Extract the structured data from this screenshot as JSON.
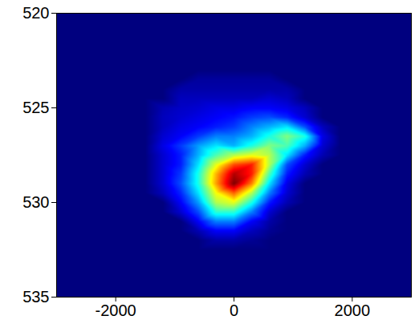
{
  "chart_data": {
    "type": "heatmap",
    "x": [
      -3000,
      -2700,
      -2400,
      -2100,
      -1800,
      -1500,
      -1200,
      -900,
      -600,
      -300,
      0,
      300,
      600,
      900,
      1200,
      1500,
      1800,
      2100,
      2400,
      2700,
      3000
    ],
    "y": [
      520,
      520.5,
      521,
      521.5,
      522,
      522.5,
      523,
      523.5,
      524,
      524.5,
      525,
      525.5,
      526,
      526.5,
      527,
      527.5,
      528,
      528.5,
      529,
      529.5,
      530,
      530.5,
      531,
      531.5,
      532,
      532.5,
      533,
      533.5,
      534,
      534.5,
      535
    ],
    "z": [
      [
        0,
        0,
        0,
        0,
        0,
        0,
        0,
        0,
        0,
        0,
        0,
        0,
        0,
        0,
        0,
        0,
        0,
        0,
        0,
        0,
        0
      ],
      [
        0,
        0,
        0,
        0,
        0,
        0,
        0,
        0,
        0,
        0,
        0,
        0,
        0,
        0,
        0,
        0,
        0,
        0,
        0,
        0,
        0
      ],
      [
        0,
        0,
        0,
        0,
        0,
        0,
        0,
        0,
        0,
        0,
        0,
        0,
        0,
        0,
        0,
        0,
        0,
        0,
        0,
        0,
        0
      ],
      [
        0,
        0,
        0,
        0,
        0,
        0,
        0,
        0,
        0,
        0,
        0,
        0,
        0,
        0,
        0,
        0,
        0,
        0,
        0,
        0,
        0
      ],
      [
        0,
        0,
        0,
        0,
        0,
        0,
        0,
        0,
        0,
        0,
        0,
        0,
        0,
        0,
        0,
        0,
        0,
        0,
        0,
        0,
        0
      ],
      [
        0,
        0,
        0,
        0,
        0,
        0,
        0,
        0,
        0,
        0,
        0,
        0,
        0,
        0,
        0,
        0,
        0,
        0,
        0,
        0,
        0
      ],
      [
        0,
        0,
        0,
        0,
        0,
        0,
        0,
        0,
        0,
        0,
        0,
        0,
        0,
        0,
        0,
        0,
        0,
        0,
        0,
        0,
        0
      ],
      [
        0,
        0,
        0,
        0,
        0,
        0,
        0,
        0,
        0.03,
        0.03,
        0.03,
        0.03,
        0.03,
        0,
        0,
        0,
        0,
        0,
        0,
        0,
        0
      ],
      [
        0,
        0,
        0,
        0,
        0,
        0,
        0,
        0.04,
        0.04,
        0.04,
        0.04,
        0.04,
        0.04,
        0.04,
        0,
        0,
        0,
        0,
        0,
        0,
        0
      ],
      [
        0,
        0,
        0,
        0,
        0,
        0,
        0,
        0.06,
        0.06,
        0.06,
        0.06,
        0.06,
        0.08,
        0.06,
        0,
        0,
        0,
        0,
        0,
        0,
        0
      ],
      [
        0,
        0,
        0,
        0,
        0,
        0,
        0.05,
        0.07,
        0.08,
        0.1,
        0.1,
        0.12,
        0.12,
        0.1,
        0.06,
        0,
        0,
        0,
        0,
        0,
        0
      ],
      [
        0,
        0,
        0,
        0,
        0,
        0,
        0.06,
        0.08,
        0.1,
        0.12,
        0.14,
        0.18,
        0.2,
        0.16,
        0.08,
        0,
        0,
        0,
        0,
        0,
        0
      ],
      [
        0,
        0,
        0,
        0,
        0,
        0,
        0.06,
        0.1,
        0.12,
        0.15,
        0.18,
        0.25,
        0.3,
        0.35,
        0.2,
        0.06,
        0,
        0,
        0,
        0,
        0
      ],
      [
        0,
        0,
        0,
        0,
        0,
        0,
        0.08,
        0.12,
        0.18,
        0.25,
        0.25,
        0.3,
        0.4,
        0.5,
        0.4,
        0.1,
        0,
        0,
        0,
        0,
        0
      ],
      [
        0,
        0,
        0,
        0,
        0,
        0,
        0.1,
        0.18,
        0.28,
        0.35,
        0.3,
        0.4,
        0.5,
        0.45,
        0.3,
        0.08,
        0,
        0,
        0,
        0,
        0
      ],
      [
        0,
        0,
        0,
        0,
        0,
        0,
        0.08,
        0.15,
        0.3,
        0.45,
        0.55,
        0.6,
        0.55,
        0.35,
        0.15,
        0.05,
        0,
        0,
        0,
        0,
        0
      ],
      [
        0,
        0,
        0,
        0,
        0,
        0,
        0.08,
        0.15,
        0.35,
        0.6,
        0.8,
        0.85,
        0.55,
        0.2,
        0.08,
        0,
        0,
        0,
        0,
        0,
        0
      ],
      [
        0,
        0,
        0,
        0,
        0,
        0,
        0.08,
        0.18,
        0.4,
        0.7,
        0.95,
        0.85,
        0.45,
        0.15,
        0.05,
        0,
        0,
        0,
        0,
        0,
        0
      ],
      [
        0,
        0,
        0,
        0,
        0,
        0,
        0.08,
        0.2,
        0.4,
        0.72,
        1.0,
        0.75,
        0.35,
        0.1,
        0,
        0,
        0,
        0,
        0,
        0,
        0
      ],
      [
        0,
        0,
        0,
        0,
        0,
        0,
        0.06,
        0.16,
        0.35,
        0.62,
        0.78,
        0.55,
        0.25,
        0.08,
        0,
        0,
        0,
        0,
        0,
        0,
        0
      ],
      [
        0,
        0,
        0,
        0,
        0,
        0,
        0,
        0.12,
        0.28,
        0.55,
        0.6,
        0.4,
        0.15,
        0.05,
        0,
        0,
        0,
        0,
        0,
        0,
        0
      ],
      [
        0,
        0,
        0,
        0,
        0,
        0,
        0,
        0.08,
        0.2,
        0.42,
        0.42,
        0.25,
        0.08,
        0,
        0,
        0,
        0,
        0,
        0,
        0,
        0
      ],
      [
        0,
        0,
        0,
        0,
        0,
        0,
        0,
        0,
        0.12,
        0.25,
        0.25,
        0.12,
        0.04,
        0,
        0,
        0,
        0,
        0,
        0,
        0,
        0
      ],
      [
        0,
        0,
        0,
        0,
        0,
        0,
        0,
        0,
        0.05,
        0.12,
        0.12,
        0.06,
        0.02,
        0,
        0,
        0,
        0,
        0,
        0,
        0,
        0
      ],
      [
        0,
        0,
        0,
        0,
        0,
        0,
        0,
        0,
        0,
        0.04,
        0.04,
        0.02,
        0,
        0,
        0,
        0,
        0,
        0,
        0,
        0,
        0
      ],
      [
        0,
        0,
        0,
        0,
        0,
        0,
        0,
        0,
        0,
        0,
        0,
        0,
        0,
        0,
        0,
        0,
        0,
        0,
        0,
        0,
        0
      ],
      [
        0,
        0,
        0,
        0,
        0,
        0,
        0,
        0,
        0,
        0,
        0,
        0,
        0,
        0,
        0,
        0,
        0,
        0,
        0,
        0,
        0
      ],
      [
        0,
        0,
        0,
        0,
        0,
        0,
        0,
        0,
        0,
        0,
        0,
        0,
        0,
        0,
        0,
        0,
        0,
        0,
        0,
        0,
        0
      ],
      [
        0,
        0,
        0,
        0,
        0,
        0,
        0,
        0,
        0,
        0,
        0,
        0,
        0,
        0,
        0,
        0,
        0,
        0,
        0,
        0,
        0
      ],
      [
        0,
        0,
        0,
        0,
        0,
        0,
        0,
        0,
        0,
        0,
        0,
        0,
        0,
        0,
        0,
        0,
        0,
        0,
        0,
        0,
        0
      ],
      [
        0,
        0,
        0,
        0,
        0,
        0,
        0,
        0,
        0,
        0,
        0,
        0,
        0,
        0,
        0,
        0,
        0,
        0,
        0,
        0,
        0
      ]
    ],
    "zlim": [
      0,
      1
    ],
    "xlim": [
      -3000,
      3000
    ],
    "ylim": [
      520,
      535
    ],
    "xticks": [
      -2000,
      0,
      2000
    ],
    "yticks": [
      520,
      525,
      530,
      535
    ]
  }
}
